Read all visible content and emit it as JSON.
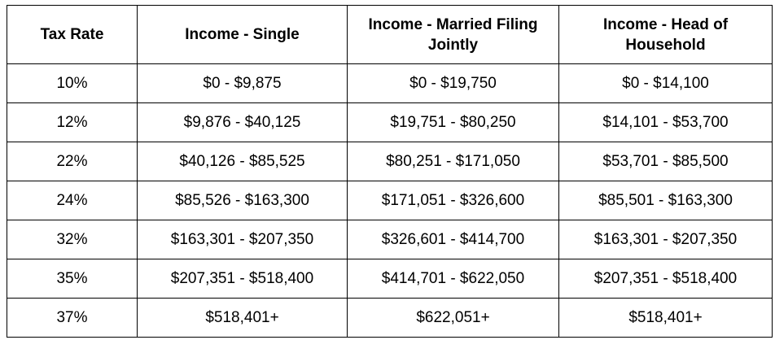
{
  "table": {
    "headers": [
      "Tax Rate",
      "Income - Single",
      "Income - Married Filing Jointly",
      "Income - Head of Household"
    ],
    "rows": [
      [
        "10%",
        "$0 - $9,875",
        "$0 - $19,750",
        "$0 - $14,100"
      ],
      [
        "12%",
        "$9,876 - $40,125",
        "$19,751 - $80,250",
        "$14,101 - $53,700"
      ],
      [
        "22%",
        "$40,126 - $85,525",
        "$80,251 - $171,050",
        "$53,701 - $85,500"
      ],
      [
        "24%",
        "$85,526 - $163,300",
        "$171,051 - $326,600",
        "$85,501 - $163,300"
      ],
      [
        "32%",
        "$163,301 - $207,350",
        "$326,601 - $414,700",
        "$163,301 - $207,350"
      ],
      [
        "35%",
        "$207,351 - $518,400",
        "$414,701 - $622,050",
        "$207,351 - $518,400"
      ],
      [
        "37%",
        "$518,401+",
        "$622,051+",
        "$518,401+"
      ]
    ]
  }
}
